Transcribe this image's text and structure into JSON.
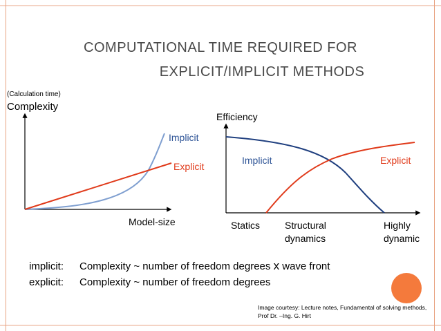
{
  "title_line1": "Computational time required for",
  "title_line2": "explicit/implicit methods",
  "title_line1_display": "COMPUTATIONAL TIME REQUIRED FOR",
  "title_line2_display": "EXPLICIT/IMPLICIT METHODS",
  "left_chart": {
    "y_sublabel": "(Calculation time)",
    "y_label": "Complexity",
    "x_label": "Model-size",
    "series": [
      {
        "name": "Implicit",
        "color": "#7f9fd0"
      },
      {
        "name": "Explicit",
        "color": "#e03a1a"
      }
    ]
  },
  "right_chart": {
    "y_label": "Efficiency",
    "x_labels": [
      "Statics",
      "Structural\ndynamics",
      "Highly\ndynamic"
    ],
    "x_label_statics": "Statics",
    "x_label_structural_1": "Structural",
    "x_label_structural_2": "dynamics",
    "x_label_highly_1": "Highly",
    "x_label_highly_2": "dynamic",
    "series": [
      {
        "name": "Implicit",
        "color": "#1f3f7f"
      },
      {
        "name": "Explicit",
        "color": "#e03a1a"
      }
    ]
  },
  "formulas": [
    {
      "key": "implicit:",
      "text": "Complexity ~ number of freedom degrees ",
      "extra": "x",
      "tail": " wave front"
    },
    {
      "key": "explicit:",
      "text": "Complexity ~ number of freedom degrees",
      "extra": "",
      "tail": ""
    }
  ],
  "credit_line1": "Image courtesy: Lecture notes, Fundamental of solving methods,",
  "credit_line2": "Prof Dr. –Ing. G. Hirt",
  "colors": {
    "accent": "#e8a07e",
    "orange_dot": "#f47a3c",
    "title": "#4a4a4a"
  }
}
